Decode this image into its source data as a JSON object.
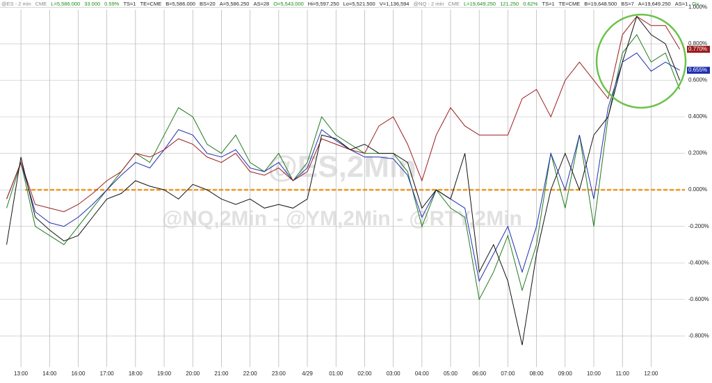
{
  "chart_data": {
    "type": "line",
    "header": [
      {
        "text": "@ES - 2 min",
        "color": "#888888"
      },
      {
        "text": "CME",
        "color": "#888888"
      },
      {
        "text": "L=5,586.000",
        "color": "#1a8c1a"
      },
      {
        "text": "33.000",
        "color": "#1a8c1a"
      },
      {
        "text": "0.59%",
        "color": "#1a8c1a"
      },
      {
        "text": "TS=1",
        "color": "#222222"
      },
      {
        "text": "TE=CME",
        "color": "#222222"
      },
      {
        "text": "B=5,586.000",
        "color": "#222222"
      },
      {
        "text": "BS=20",
        "color": "#222222"
      },
      {
        "text": "A=5,586.250",
        "color": "#222222"
      },
      {
        "text": "AS=28",
        "color": "#222222"
      },
      {
        "text": "O=5,543.000",
        "color": "#1a8c1a"
      },
      {
        "text": "Hi=5,597.250",
        "color": "#222222"
      },
      {
        "text": "Lo=5,521.500",
        "color": "#222222"
      },
      {
        "text": "V=1,136,594",
        "color": "#222222"
      },
      {
        "text": "@NQ - 2 min",
        "color": "#888888"
      },
      {
        "text": "CME",
        "color": "#888888"
      },
      {
        "text": "L=19,649.250",
        "color": "#1a8c1a"
      },
      {
        "text": "121.250",
        "color": "#1a8c1a"
      },
      {
        "text": "0.62%",
        "color": "#1a8c1a"
      },
      {
        "text": "TS=1",
        "color": "#222222"
      },
      {
        "text": "TE=CME",
        "color": "#222222"
      },
      {
        "text": "B=19,648.500",
        "color": "#222222"
      },
      {
        "text": "BS=7",
        "color": "#222222"
      },
      {
        "text": "A=19,649.250",
        "color": "#222222"
      },
      {
        "text": "AS=1",
        "color": "#222222"
      },
      {
        "text": "O=...",
        "color": "#1a8c1a"
      }
    ],
    "watermark": [
      "@ES,2Min",
      "@NQ,2Min - @YM,2Min - @RTY,2Min"
    ],
    "x": [
      -0.5,
      0,
      0.5,
      1,
      1.5,
      2,
      2.5,
      3,
      3.5,
      4,
      4.5,
      5,
      5.5,
      6,
      6.5,
      7,
      7.5,
      8,
      8.5,
      9,
      9.5,
      10,
      10.5,
      11,
      11.5,
      12,
      12.5,
      13,
      13.5,
      14,
      14.5,
      15,
      15.5,
      16,
      16.5,
      17,
      17.5,
      18,
      18.5,
      19,
      19.5,
      20,
      20.5,
      21,
      21.5,
      22,
      22.5,
      23
    ],
    "series": [
      {
        "name": "@RTY",
        "color": "#1e7a1e",
        "values": [
          -0.1,
          0.15,
          -0.2,
          -0.25,
          -0.3,
          -0.2,
          -0.1,
          0.0,
          0.1,
          0.2,
          0.15,
          0.3,
          0.45,
          0.4,
          0.25,
          0.2,
          0.3,
          0.15,
          0.1,
          0.2,
          0.05,
          0.15,
          0.4,
          0.3,
          0.25,
          0.2,
          0.2,
          0.2,
          0.1,
          -0.2,
          0.0,
          -0.1,
          -0.15,
          -0.6,
          -0.45,
          -0.25,
          -0.55,
          -0.3,
          0.2,
          -0.1,
          0.3,
          -0.2,
          0.4,
          0.75,
          0.85,
          0.7,
          0.75,
          0.55
        ]
      },
      {
        "name": "@NQ",
        "color": "#1f2fb0",
        "values": [
          -0.05,
          0.15,
          -0.12,
          -0.18,
          -0.2,
          -0.15,
          -0.08,
          0.0,
          0.08,
          0.15,
          0.12,
          0.22,
          0.33,
          0.3,
          0.2,
          0.18,
          0.22,
          0.12,
          0.1,
          0.15,
          0.05,
          0.12,
          0.33,
          0.27,
          0.22,
          0.18,
          0.18,
          0.17,
          0.08,
          -0.15,
          0.0,
          -0.05,
          -0.1,
          -0.5,
          -0.35,
          -0.2,
          -0.45,
          -0.2,
          0.2,
          0.0,
          0.3,
          -0.05,
          0.45,
          0.7,
          0.75,
          0.65,
          0.7,
          0.655
        ],
        "last_label": "0.655%"
      },
      {
        "name": "@ES",
        "color": "#9a1c1c",
        "values": [
          -0.05,
          0.15,
          -0.08,
          -0.1,
          -0.12,
          -0.08,
          -0.02,
          0.05,
          0.1,
          0.2,
          0.18,
          0.22,
          0.28,
          0.25,
          0.18,
          0.15,
          0.2,
          0.1,
          0.08,
          0.12,
          0.05,
          0.1,
          0.28,
          0.25,
          0.22,
          0.2,
          0.35,
          0.4,
          0.25,
          0.05,
          0.3,
          0.45,
          0.35,
          0.3,
          0.3,
          0.3,
          0.5,
          0.55,
          0.4,
          0.6,
          0.7,
          0.6,
          0.5,
          0.85,
          0.95,
          0.9,
          0.9,
          0.77
        ],
        "last_label": "0.770%"
      },
      {
        "name": "@YM",
        "color": "#111111",
        "values": [
          -0.3,
          0.18,
          -0.15,
          -0.22,
          -0.28,
          -0.25,
          -0.15,
          -0.05,
          -0.02,
          0.05,
          0.02,
          0.0,
          -0.05,
          0.03,
          0.0,
          -0.05,
          -0.08,
          -0.05,
          -0.1,
          -0.08,
          -0.1,
          -0.05,
          0.3,
          0.28,
          0.22,
          0.25,
          0.2,
          0.2,
          0.15,
          -0.1,
          0.0,
          -0.05,
          0.2,
          -0.45,
          -0.3,
          -0.5,
          -0.85,
          -0.35,
          0.0,
          0.2,
          0.0,
          0.3,
          0.4,
          0.7,
          0.95,
          0.85,
          0.8,
          0.6
        ]
      }
    ],
    "xlim": [
      -0.73,
      23.18
    ],
    "xticks": [
      {
        "value": 0,
        "label": "13:00"
      },
      {
        "value": 1,
        "label": "14:00"
      },
      {
        "value": 2,
        "label": "16:00"
      },
      {
        "value": 3,
        "label": "17:00"
      },
      {
        "value": 4,
        "label": "18:00"
      },
      {
        "value": 5,
        "label": "19:00"
      },
      {
        "value": 6,
        "label": "20:00"
      },
      {
        "value": 7,
        "label": "21:00"
      },
      {
        "value": 8,
        "label": "22:00"
      },
      {
        "value": 9,
        "label": "23:00"
      },
      {
        "value": 10,
        "label": "4/29"
      },
      {
        "value": 11,
        "label": "01:00"
      },
      {
        "value": 12,
        "label": "02:00"
      },
      {
        "value": 13,
        "label": "03:00"
      },
      {
        "value": 14,
        "label": "04:00"
      },
      {
        "value": 15,
        "label": "05:00"
      },
      {
        "value": 16,
        "label": "06:00"
      },
      {
        "value": 17,
        "label": "07:00"
      },
      {
        "value": 18,
        "label": "08:00"
      },
      {
        "value": 19,
        "label": "09:00"
      },
      {
        "value": 20,
        "label": "10:00"
      },
      {
        "value": 21,
        "label": "11:00"
      },
      {
        "value": 22,
        "label": "12:00"
      }
    ],
    "ylim": [
      -0.94,
      1.04
    ],
    "yticks": [
      {
        "value": 1.0,
        "label": "1.000%"
      },
      {
        "value": 0.8,
        "label": "0.800%"
      },
      {
        "value": 0.6,
        "label": "0.600%"
      },
      {
        "value": 0.4,
        "label": "0.400%"
      },
      {
        "value": 0.2,
        "label": "0.200%"
      },
      {
        "value": 0,
        "label": "0.000%"
      },
      {
        "value": -0.2,
        "label": "-0.200%"
      },
      {
        "value": -0.4,
        "label": "-0.400%"
      },
      {
        "value": -0.6,
        "label": "-0.600%"
      },
      {
        "value": -0.8,
        "label": "-0.800%"
      }
    ],
    "grid": true,
    "reference_line": {
      "value": 0,
      "color": "#f0961e"
    }
  }
}
